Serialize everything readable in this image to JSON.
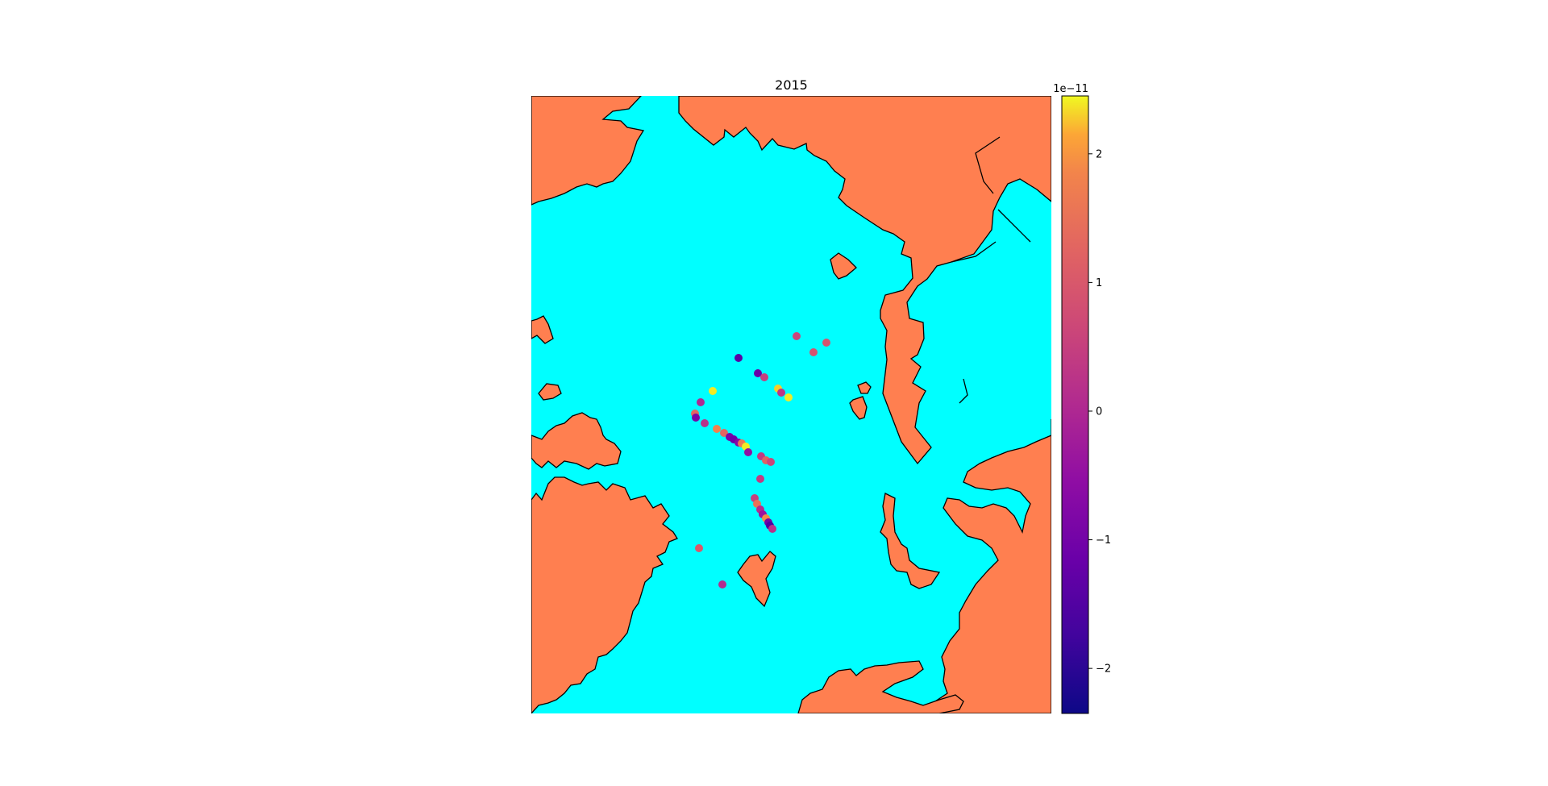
{
  "chart_data": {
    "type": "scatter",
    "title": "2015",
    "colormap": "plasma",
    "colors": {
      "ocean": "#00ffff",
      "land": "#ff7f50",
      "coastline": "#000000"
    },
    "colorbar": {
      "offset_label": "1e−11",
      "range": [
        -2.35,
        2.45
      ],
      "ticks": [
        {
          "value": 2,
          "label": "2"
        },
        {
          "value": 1,
          "label": "1"
        },
        {
          "value": 0,
          "label": "0"
        },
        {
          "value": -1,
          "label": "−1"
        },
        {
          "value": -2,
          "label": "−2"
        }
      ]
    },
    "points": [
      {
        "value": 0.6
      },
      {
        "value": 0.9
      },
      {
        "value": 0.9
      },
      {
        "value": -1.4
      },
      {
        "value": -1.2
      },
      {
        "value": 0.5
      },
      {
        "value": 2.3
      },
      {
        "value": 2.4
      },
      {
        "value": 0.3
      },
      {
        "value": 2.4
      },
      {
        "value": 0.0
      },
      {
        "value": 1.3
      },
      {
        "value": -0.9
      },
      {
        "value": 0.2
      },
      {
        "value": 1.8
      },
      {
        "value": 1.3
      },
      {
        "value": -0.9
      },
      {
        "value": -1.1
      },
      {
        "value": -0.7
      },
      {
        "value": 1.6
      },
      {
        "value": 2.4
      },
      {
        "value": -0.5
      },
      {
        "value": 0.4
      },
      {
        "value": 1.2
      },
      {
        "value": 0.6
      },
      {
        "value": 0.4
      },
      {
        "value": 0.5
      },
      {
        "value": 1.5
      },
      {
        "value": 0.1
      },
      {
        "value": -0.4
      },
      {
        "value": 1.9
      },
      {
        "value": -1.0
      },
      {
        "value": -1.6
      },
      {
        "value": 0.2
      },
      {
        "value": 1.0
      },
      {
        "value": 0.1
      }
    ]
  }
}
